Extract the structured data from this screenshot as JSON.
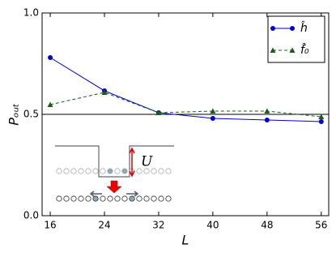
{
  "chart_data": {
    "type": "line",
    "x_label": "L",
    "y_label": "Pₒᵤₜ",
    "x": [
      16,
      24,
      32,
      40,
      48,
      56
    ],
    "series": [
      {
        "name": "ĥ",
        "color": "#0000cc",
        "marker": "circle",
        "linestyle": "solid",
        "values": [
          0.78,
          0.616,
          0.508,
          0.48,
          0.472,
          0.464
        ]
      },
      {
        "name": "f̂₀",
        "color": "#1a5c1a",
        "marker": "triangle",
        "linestyle": "dashed",
        "values": [
          0.548,
          0.608,
          0.508,
          0.516,
          0.516,
          0.488
        ]
      }
    ],
    "xlim": [
      14.8,
      57.1
    ],
    "ylim": [
      0,
      1
    ],
    "xticks": [
      16,
      24,
      32,
      40,
      48,
      56
    ],
    "yticks": [
      {
        "value": 0,
        "label": "0.0"
      },
      {
        "value": 0.5,
        "label": "0.5"
      },
      {
        "value": 1,
        "label": "1.0"
      }
    ],
    "hline": 0.5,
    "legend": "upper right",
    "inset_label": "U"
  }
}
